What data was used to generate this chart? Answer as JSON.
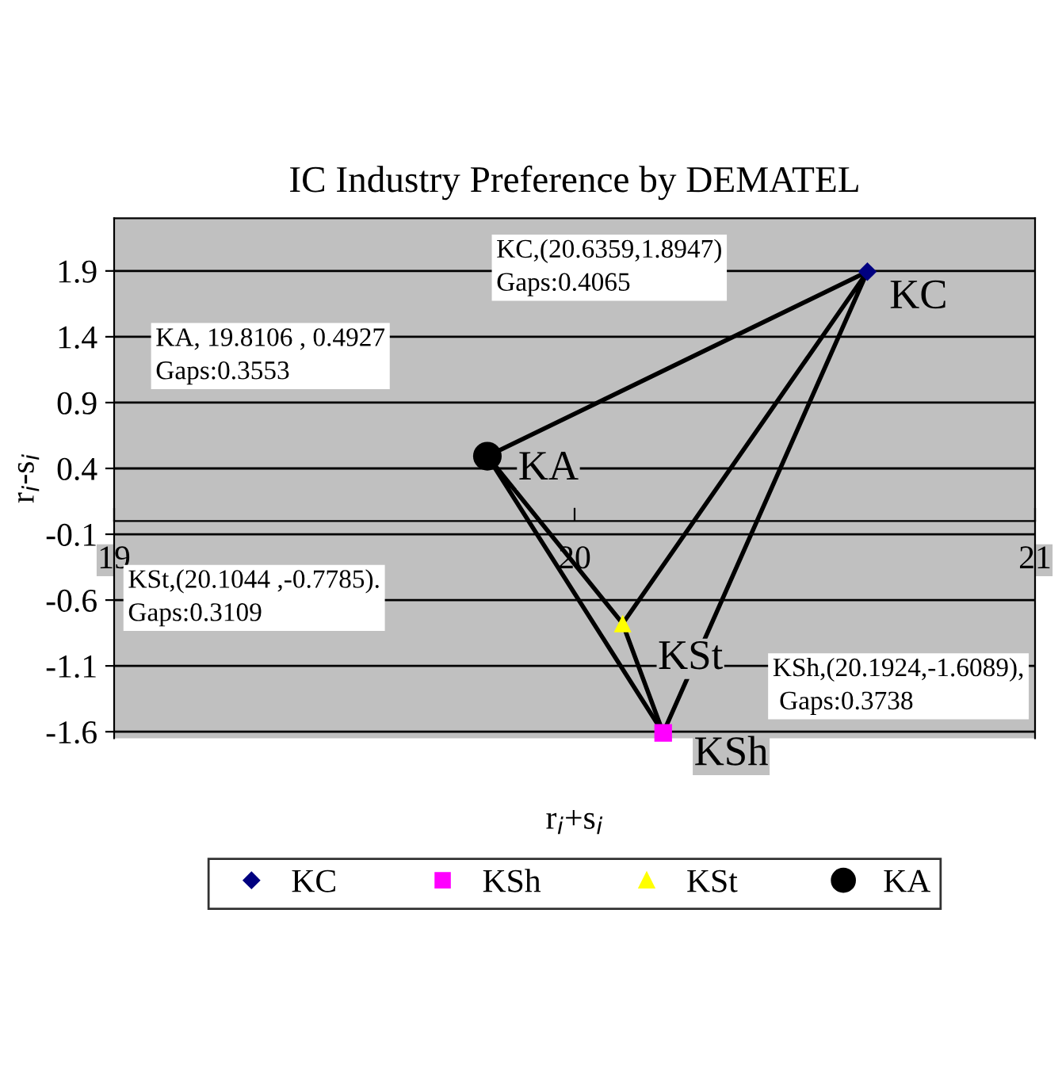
{
  "chart_data": {
    "type": "scatter",
    "title": "IC Industry Preference by DEMATEL",
    "xlabel": "r$_{i}$+s$_{i}$",
    "ylabel": "r$_{i}$-s$_{i}$",
    "xlim": [
      19,
      21
    ],
    "xticks": [
      19,
      20,
      21
    ],
    "ylim": [
      -1.65,
      2.3
    ],
    "yticks": [
      -1.6,
      -1.1,
      -0.6,
      -0.1,
      0.4,
      0.9,
      1.4,
      1.9
    ],
    "grid": "y",
    "legend": "bottom",
    "series": [
      {
        "type": "line",
        "color": "#000000",
        "x": [
          19.8106,
          20.6359,
          20.1924,
          19.8106,
          20.1044,
          20.6359
        ],
        "values": [
          0.4927,
          1.8947,
          -1.6089,
          0.4927,
          -0.7785,
          1.8947
        ]
      },
      {
        "type": "line",
        "color": "#000000",
        "x": [
          20.1044,
          20.1924
        ],
        "values": [
          -0.7785,
          -1.6089
        ]
      },
      {
        "name": "KC",
        "color": "#000080",
        "marker": "diamond",
        "x": [
          20.6359
        ],
        "values": [
          1.8947
        ]
      },
      {
        "name": "KSh",
        "color": "#ff00ff",
        "marker": "square",
        "x": [
          20.1924
        ],
        "values": [
          -1.6089
        ]
      },
      {
        "name": "KSt",
        "color": "#ffff00",
        "marker": "triangle",
        "x": [
          20.1044
        ],
        "values": [
          -0.7785
        ]
      },
      {
        "name": "KA",
        "color": "#000000",
        "marker": "circle",
        "x": [
          19.8106
        ],
        "values": [
          0.4927
        ]
      }
    ],
    "annotations": [
      {
        "text": "KC",
        "x": 20.6359,
        "y": 1.8947
      },
      {
        "text": "KSh",
        "x": 20.1924,
        "y": -1.6089
      },
      {
        "text": "KSt",
        "x": 20.1044,
        "y": -0.7785
      },
      {
        "text": "KA",
        "x": 19.8106,
        "y": 0.4927
      },
      "KC,(20.6359,1.8947)\nGaps:0.4065",
      "KA, 19.8106 , 0.4927\nGaps:0.3553",
      "KSt,(20.1044 ,-0.7785).\nGaps:0.3109",
      "KSh,(20.1924,-1.6089),\n Gaps:0.3738"
    ]
  }
}
